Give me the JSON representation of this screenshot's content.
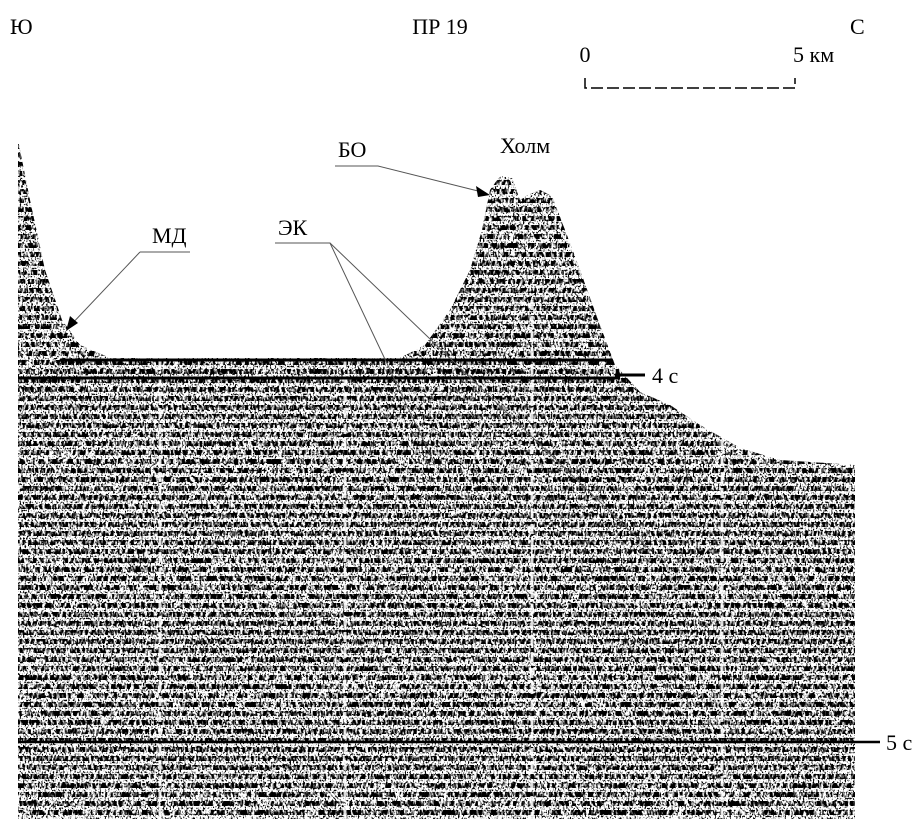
{
  "header": {
    "left": "Ю",
    "title": "ПР 19",
    "right": "С"
  },
  "scale": {
    "start": "0",
    "end": "5 км"
  },
  "labels": {
    "bo": "БО",
    "hill": "Холм",
    "md": "МД",
    "ek": "ЭК"
  },
  "time_marks": [
    "4 с",
    "5 с"
  ]
}
